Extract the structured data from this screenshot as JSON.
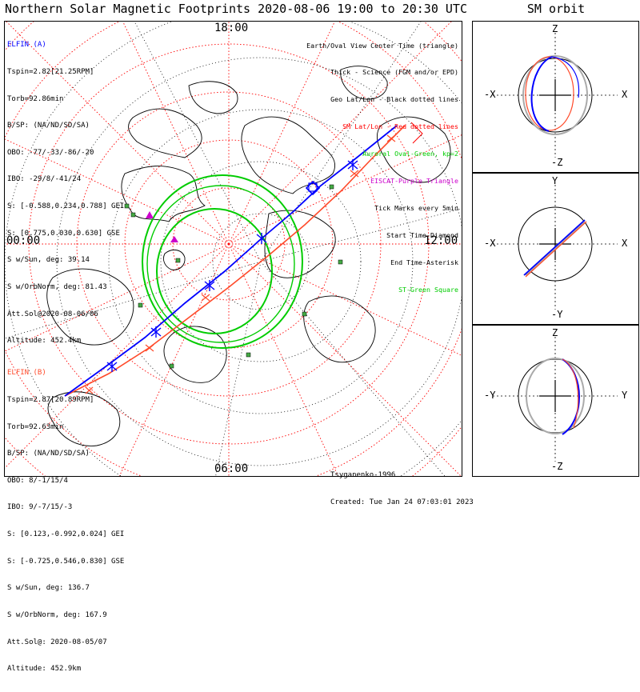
{
  "title": "Northern Solar Magnetic Footprints 2020-08-06 19:00 to 20:30 UTC",
  "sm_title": "SM orbit",
  "mlt_labels": {
    "top": "18:00",
    "left": "00:00",
    "right": "12:00",
    "bottom": "06:00"
  },
  "probe_a": {
    "name": "ELFIN (A)",
    "lines": [
      "Tspin=2.82[21.25RPM]",
      "Torb=92.86min",
      "B/SP: (NA/ND/SD/SA)",
      "OBO: -77/-33/-86/-20",
      "IBO: -29/8/-41/24",
      "S: [-0.588,0.234,0.788] GEI",
      "S: [0.775,0.030,0.630] GSE",
      "S w/Sun, deg: 39.14",
      "S w/OrbNorm, deg: 81.43",
      "Att.Sol@2020-08-06/06",
      "Altitude: 452.4km"
    ],
    "color": "#0000ff"
  },
  "probe_b": {
    "name": "ELFIN (B)",
    "lines": [
      "Tspin=2.87[20.89RPM]",
      "Torb=92.63min",
      "B/SP: (NA/ND/SD/SA)",
      "OBO: 8/-1/15/4",
      "IBO: 9/-7/15/-3",
      "S: [0.123,-0.992,0.024] GEI",
      "S: [-0.725,0.546,0.830] GSE",
      "S w/Sun, deg: 136.7",
      "S w/OrbNorm, deg: 167.9",
      "Att.Sol@: 2020-08-05/07",
      "Altitude: 452.9km"
    ],
    "color": "#ff4a2a"
  },
  "legend": [
    {
      "text": "Earth/Oval View Center Time (triangle)",
      "color": "#000000"
    },
    {
      "text": "Thick - Science (FGM and/or EPD)",
      "color": "#000000"
    },
    {
      "text": "Geo Lat/Lon - Black dotted lines",
      "color": "#000000"
    },
    {
      "text": "SM Lat/Lon - Red dotted lines",
      "color": "#ff0000"
    },
    {
      "text": "Auroral Oval-Green, kp=2",
      "color": "#00cc00"
    },
    {
      "text": "EISCAT-Purple Triangle",
      "color": "#cc00cc"
    },
    {
      "text": "Tick Marks every 5min",
      "color": "#000000"
    },
    {
      "text": "Start Time-Diamond",
      "color": "#000000"
    },
    {
      "text": "End Time-Asterisk",
      "color": "#000000"
    },
    {
      "text": "ST-Green Square",
      "color": "#00cc00"
    }
  ],
  "credits": {
    "model": "Tsyganenko-1996",
    "created": "Created: Tue Jan 24 07:03:01 2023"
  },
  "sm_panels": [
    {
      "top": "Z",
      "bottom": "-Z",
      "left": "-X",
      "right": "X"
    },
    {
      "top": "Y",
      "bottom": "-Y",
      "left": "-X",
      "right": "X"
    },
    {
      "top": "Z",
      "bottom": "-Z",
      "left": "-Y",
      "right": "Y"
    }
  ],
  "colors": {
    "sm_grid": "#ff0000",
    "geo_grid": "#000000",
    "oval": "#00cc00",
    "eiscat": "#cc00cc",
    "ground_station": "#44aa44"
  }
}
